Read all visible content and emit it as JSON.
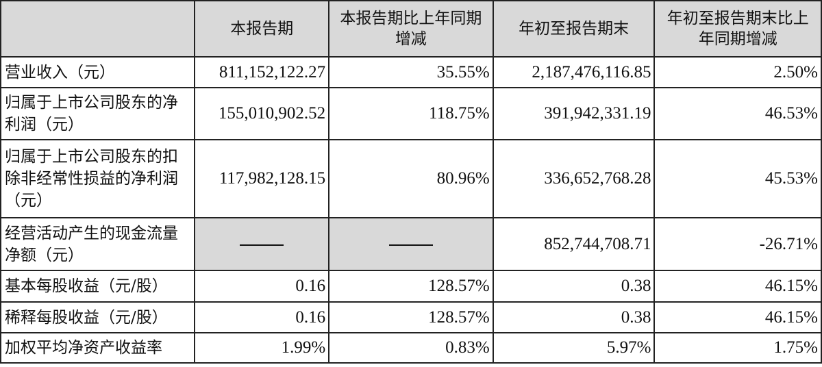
{
  "headers": [
    "",
    "本报告期",
    "本报告期比上年同期增减",
    "年初至报告期末",
    "年初至报告期末比上年同期增减"
  ],
  "rows": [
    {
      "label": "营业收入（元）",
      "cells": [
        "811,152,122.27",
        "35.55%",
        "2,187,476,116.85",
        "2.50%"
      ]
    },
    {
      "label": "归属于上市公司股东的净利润（元）",
      "cells": [
        "155,010,902.52",
        "118.75%",
        "391,942,331.19",
        "46.53%"
      ]
    },
    {
      "label": "归属于上市公司股东的扣除非经常性损益的净利润（元）",
      "cells": [
        "117,982,128.15",
        "80.96%",
        "336,652,768.28",
        "45.53%"
      ]
    },
    {
      "label": "经营活动产生的现金流量净额（元）",
      "cells": [
        "——",
        "——",
        "852,744,708.71",
        "-26.71%"
      ]
    },
    {
      "label": "基本每股收益（元/股）",
      "cells": [
        "0.16",
        "128.57%",
        "0.38",
        "46.15%"
      ]
    },
    {
      "label": "稀释每股收益（元/股）",
      "cells": [
        "0.16",
        "128.57%",
        "0.38",
        "46.15%"
      ]
    },
    {
      "label": "加权平均净资产收益率",
      "cells": [
        "1.99%",
        "0.83%",
        "5.97%",
        "1.75%"
      ]
    }
  ]
}
